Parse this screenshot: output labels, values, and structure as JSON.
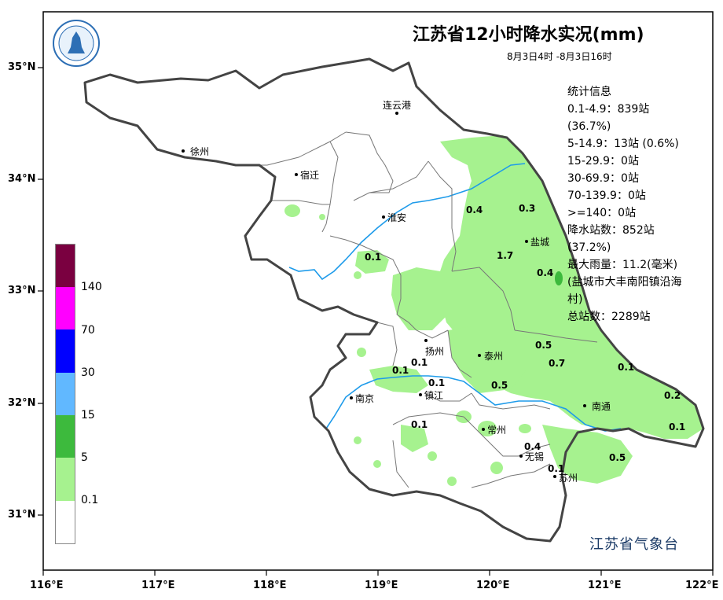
{
  "map": {
    "title": "江苏省12小时降水实况(mm)",
    "period": "8月3日4时 -8月3日16时",
    "agency": "江苏省气象台",
    "colors": {
      "rain_light": "#a6f28f",
      "rain_moderate": "#3dba3d",
      "river": "#1e9bea",
      "border": "#444444",
      "city_boundary": "#777777"
    }
  },
  "stats": {
    "heading": "统计信息",
    "lines": [
      "0.1-4.9：839站",
      "(36.7%)",
      "5-14.9：13站 (0.6%)",
      "15-29.9：0站",
      "30-69.9：0站",
      "70-139.9：0站",
      ">=140：0站",
      "降水站数：852站",
      "(37.2%)",
      "最大雨量：11.2(毫米)",
      "(盐城市大丰南阳镇沿海",
      "村)",
      "总站数：2289站"
    ]
  },
  "legend": {
    "labels": [
      "140",
      "70",
      "30",
      "15",
      "5",
      "0.1"
    ],
    "colors": [
      "#7a0040",
      "#ff00ff",
      "#0000ff",
      "#61b8ff",
      "#3dba3d",
      "#a6f28f",
      "#ffffff"
    ]
  },
  "axes": {
    "lat_labels": [
      "35°N",
      "34°N",
      "33°N",
      "32°N",
      "31°N"
    ],
    "lon_labels": [
      "116°E",
      "117°E",
      "118°E",
      "119°E",
      "120°E",
      "121°E",
      "122°E"
    ]
  },
  "cities": [
    "连云港",
    "徐州",
    "宿迁",
    "淮安",
    "盐城",
    "扬州",
    "泰州",
    "南京",
    "镇江",
    "常州",
    "南通",
    "无锡",
    "苏州"
  ],
  "values": [
    "0.4",
    "0.3",
    "1.7",
    "0.4",
    "0.1",
    "0.5",
    "0.7",
    "0.1",
    "0.1",
    "0.1",
    "0.1",
    "0.5",
    "0.2",
    "0.1",
    "0.1",
    "0.4",
    "0.1",
    "0.5"
  ]
}
